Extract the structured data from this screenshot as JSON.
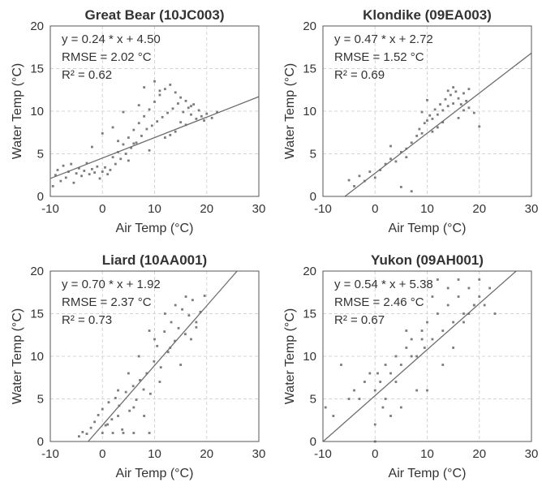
{
  "chart_data": [
    {
      "type": "scatter",
      "title": "Great Bear (10JC003)",
      "xlabel": "Air Temp (°C)",
      "ylabel": "Water Temp (°C)",
      "xlim": [
        -10,
        30
      ],
      "ylim": [
        0,
        20
      ],
      "xticks": [
        "-10",
        "0",
        "10",
        "20",
        "30"
      ],
      "yticks": [
        "0",
        "5",
        "10",
        "15",
        "20"
      ],
      "grid": true,
      "annotations": [
        "y = 0.24 * x + 4.50",
        "RMSE = 2.02 °C",
        "R² = 0.62"
      ],
      "fit": {
        "slope": 0.24,
        "intercept": 4.5
      },
      "x": [
        -9.5,
        -9,
        -8.6,
        -8,
        -7.5,
        -7,
        -6.5,
        -6,
        -5.5,
        -5,
        -4.5,
        -4,
        -3.5,
        -3,
        -2.5,
        -2,
        -1.5,
        -1,
        -0.5,
        0,
        0.5,
        1,
        1.5,
        2,
        2.5,
        3,
        3.5,
        4,
        4.5,
        5,
        5.5,
        6,
        6.5,
        7,
        7.5,
        8,
        8.5,
        9,
        9.5,
        10,
        10.5,
        11,
        11.5,
        12,
        12.5,
        13,
        13.5,
        14,
        14.5,
        15,
        15.5,
        16,
        16.5,
        17,
        17.5,
        18,
        18.5,
        19,
        19.5,
        20,
        21,
        22,
        -2,
        0,
        2,
        4,
        6,
        8,
        10,
        12,
        14,
        16,
        3,
        5,
        7,
        9,
        11,
        13,
        15,
        17
      ],
      "y": [
        1.2,
        2.5,
        3.1,
        1.8,
        3.6,
        2.2,
        2.9,
        3.8,
        1.6,
        2.7,
        3.3,
        2.4,
        3.0,
        3.9,
        2.6,
        3.2,
        2.8,
        3.5,
        2.1,
        2.9,
        3.4,
        2.6,
        3.1,
        4.6,
        3.8,
        5.2,
        4.4,
        6.1,
        5.0,
        6.9,
        5.7,
        7.8,
        6.3,
        8.6,
        7.1,
        9.4,
        7.9,
        10.2,
        8.3,
        11.1,
        8.8,
        11.9,
        9.3,
        12.6,
        9.8,
        13.1,
        10.3,
        12.2,
        10.9,
        11.6,
        9.9,
        11.2,
        10.4,
        9.6,
        10.8,
        9.1,
        10.1,
        9.4,
        8.9,
        9.7,
        9.2,
        9.9,
        5.8,
        7.4,
        8.1,
        9.9,
        6.2,
        12.8,
        13.5,
        6.9,
        7.6,
        8.4,
        6.5,
        4.2,
        10.7,
        5.4,
        12.4,
        7.2,
        8.7,
        10.6
      ]
    },
    {
      "type": "scatter",
      "title": "Klondike (09EA003)",
      "xlabel": "Air Temp (°C)",
      "ylabel": "Water Temp (°C)",
      "xlim": [
        -10,
        30
      ],
      "ylim": [
        0,
        20
      ],
      "xticks": [
        "-10",
        "0",
        "10",
        "20",
        "30"
      ],
      "yticks": [
        "0",
        "5",
        "10",
        "15",
        "20"
      ],
      "grid": true,
      "annotations": [
        "y = 0.47 * x + 2.72",
        "RMSE = 1.52 °C",
        "R² = 0.69"
      ],
      "fit": {
        "slope": 0.47,
        "intercept": 2.72
      },
      "x": [
        -5,
        -4,
        -3,
        -2,
        -1,
        0,
        1,
        2,
        3,
        4,
        5,
        6,
        7,
        8,
        8.5,
        9,
        9.5,
        10,
        10.5,
        11,
        11.5,
        12,
        12.5,
        13,
        13.5,
        14,
        14.5,
        15,
        15.5,
        16,
        16.5,
        17,
        17.5,
        18,
        19,
        20,
        3,
        6,
        9,
        12,
        15,
        18,
        5,
        10,
        13,
        16,
        11,
        14,
        17,
        7
      ],
      "y": [
        1.9,
        1.2,
        2.4,
        1.8,
        2.9,
        2.2,
        3.1,
        3.8,
        4.4,
        4.1,
        5.2,
        5.6,
        6.3,
        7.1,
        7.9,
        7.4,
        8.6,
        8.9,
        9.5,
        9.1,
        10.2,
        9.6,
        10.8,
        10.1,
        11.4,
        10.6,
        11.9,
        10.9,
        12.3,
        11.5,
        10.8,
        12.1,
        11.2,
        12.6,
        9.8,
        8.2,
        5.9,
        4.6,
        9.9,
        8.1,
        12.8,
        10.4,
        1.1,
        11.3,
        8.7,
        9.2,
        7.6,
        12.4,
        10.1,
        0.6
      ]
    },
    {
      "type": "scatter",
      "title": "Liard (10AA001)",
      "xlabel": "Air Temp (°C)",
      "ylabel": "Water Temp (°C)",
      "xlim": [
        -10,
        30
      ],
      "ylim": [
        0,
        20
      ],
      "xticks": [
        "-10",
        "0",
        "10",
        "20",
        "30"
      ],
      "yticks": [
        "0",
        "5",
        "10",
        "15",
        "20"
      ],
      "grid": true,
      "annotations": [
        "y = 0.70 * x + 1.92",
        "RMSE = 2.37 °C",
        "R² = 0.73"
      ],
      "fit": {
        "slope": 0.7,
        "intercept": 1.92
      },
      "x": [
        -4.5,
        -3.8,
        -3,
        -2.2,
        -1.5,
        -0.8,
        0,
        0.6,
        1.2,
        1.8,
        2.5,
        3.2,
        3.8,
        4.5,
        5.2,
        5.9,
        6.5,
        7.2,
        7.9,
        8.5,
        9.2,
        9.9,
        10.5,
        11.2,
        11.9,
        12.6,
        13.2,
        13.9,
        14.6,
        15.3,
        15.9,
        16.6,
        17.3,
        18,
        18.8,
        19.6,
        0,
        2,
        4,
        6,
        8,
        10,
        12,
        14,
        16,
        18,
        1,
        3,
        5,
        7,
        9,
        11,
        13,
        15,
        17,
        3,
        6,
        9
      ],
      "y": [
        0.6,
        1.1,
        0.9,
        1.6,
        2.3,
        3.1,
        3.8,
        1.9,
        4.6,
        2.6,
        5.1,
        4.2,
        1.4,
        5.8,
        3.6,
        6.5,
        4.9,
        7.2,
        6.1,
        8,
        5.6,
        9.4,
        11.2,
        8.7,
        12.9,
        10.5,
        14,
        11.8,
        13.3,
        15.5,
        12.6,
        14.8,
        16.6,
        13.4,
        15.2,
        17.1,
        1,
        1,
        1,
        1,
        3,
        12,
        15,
        16,
        17,
        14,
        2,
        6,
        8,
        10,
        13,
        7,
        11,
        9,
        12,
        3,
        4,
        1
      ]
    },
    {
      "type": "scatter",
      "title": "Yukon (09AH001)",
      "xlabel": "Air Temp (°C)",
      "ylabel": "Water Temp (°C)",
      "xlim": [
        -10,
        30
      ],
      "ylim": [
        0,
        20
      ],
      "xticks": [
        "-10",
        "0",
        "10",
        "20",
        "30"
      ],
      "yticks": [
        "0",
        "5",
        "10",
        "15",
        "20"
      ],
      "grid": true,
      "annotations": [
        "y = 0.54 * x + 5.38",
        "RMSE = 2.46 °C",
        "R² = 0.67"
      ],
      "fit": {
        "slope": 0.54,
        "intercept": 5.38
      },
      "x": [
        -9.5,
        -8,
        -6.5,
        -5,
        -4,
        -3,
        -2,
        -1,
        0,
        0.5,
        1,
        1.5,
        2,
        3,
        4,
        5,
        6,
        7,
        8,
        9,
        9.5,
        10,
        11,
        12,
        13,
        14,
        15,
        16,
        17,
        18,
        19,
        20,
        21,
        22,
        23,
        0,
        0,
        3,
        5,
        8,
        10,
        12,
        14,
        16,
        18,
        20,
        2,
        6,
        9,
        11,
        13,
        15,
        17,
        19,
        4,
        7
      ],
      "y": [
        4,
        3,
        9,
        5,
        6,
        5,
        7,
        8,
        6,
        8,
        7,
        4,
        9,
        8,
        10,
        9,
        11,
        12,
        10,
        13,
        11,
        14,
        12,
        15,
        13,
        16,
        14,
        17,
        15,
        18,
        16,
        17,
        16,
        18,
        15,
        0,
        2,
        3,
        4,
        6,
        6,
        19,
        18,
        19,
        15,
        19,
        5,
        13,
        12,
        17,
        9,
        11,
        14,
        16,
        7,
        10
      ]
    }
  ]
}
